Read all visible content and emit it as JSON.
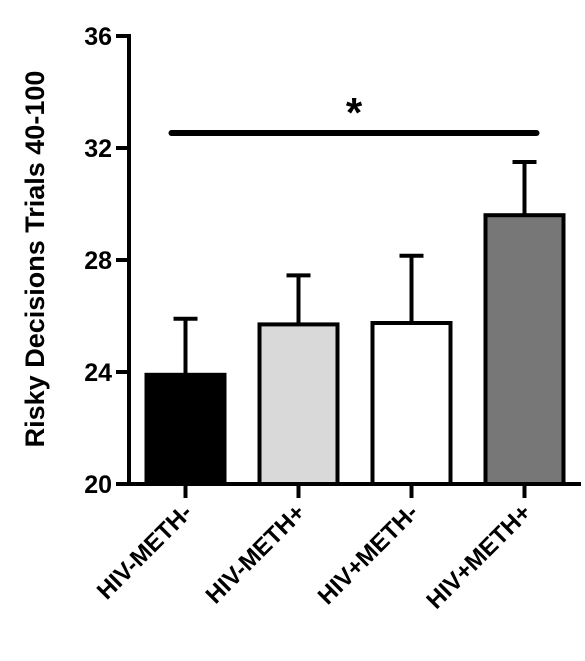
{
  "chart_data": {
    "type": "bar",
    "title": "",
    "xlabel": "",
    "ylabel": "Risky Decisions Trials 40-100",
    "ylim": [
      20,
      36
    ],
    "yticks": [
      20,
      24,
      28,
      32,
      36
    ],
    "categories": [
      "HIV-METH-",
      "HIV-METH+",
      "HIV+METH-",
      "HIV+METH+"
    ],
    "values": [
      23.9,
      25.7,
      25.75,
      29.6
    ],
    "errors": [
      2.0,
      1.75,
      2.4,
      1.9
    ],
    "bar_colors": [
      "#000000",
      "#d9d9d9",
      "#ffffff",
      "#777777"
    ],
    "significance": {
      "from": 0,
      "to": 3,
      "label": "*"
    },
    "grid": false,
    "legend": "none"
  }
}
